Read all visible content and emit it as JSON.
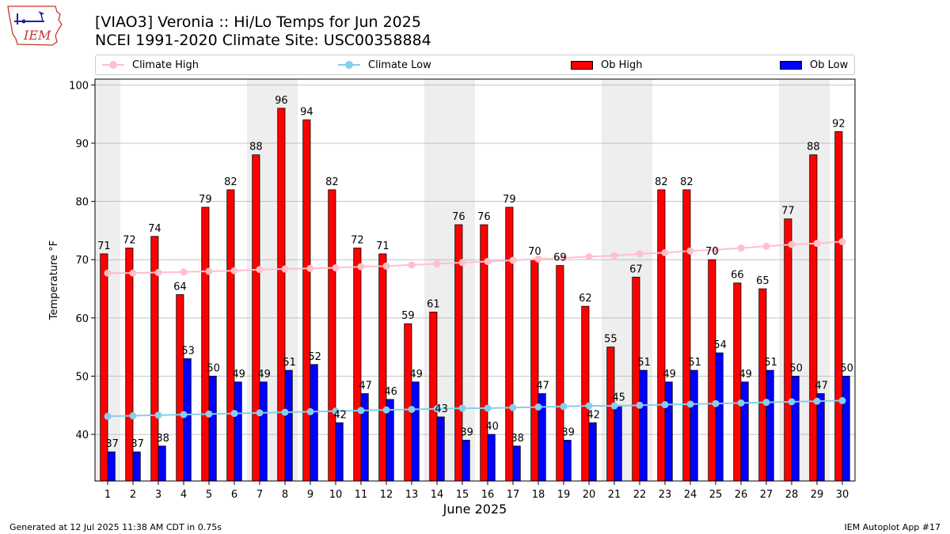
{
  "header": {
    "title_line1": "[VIAO3] Veronia :: Hi/Lo Temps for Jun 2025",
    "title_line2": "NCEI 1991-2020 Climate Site: USC00358884",
    "logo_text": "IEM"
  },
  "footer": {
    "left": "Generated at 12 Jul 2025 11:38 AM CDT in 0.75s",
    "right": "IEM Autoplot App #17"
  },
  "colors": {
    "ob_high": "#ff0000",
    "ob_low": "#0000ff",
    "climate_high": "#ffc0cb",
    "climate_low": "#87ceeb",
    "weekend_shade": "#eeeeee",
    "grid": "#b0b0b0"
  },
  "chart_data": {
    "type": "bar",
    "xlabel": "June 2025",
    "ylabel": "Temperature °F",
    "ylim": [
      32,
      101
    ],
    "yticks": [
      40,
      50,
      60,
      70,
      80,
      90,
      100
    ],
    "grid": "horizontal",
    "legend_position": "top",
    "categories": [
      "1",
      "2",
      "3",
      "4",
      "5",
      "6",
      "7",
      "8",
      "9",
      "10",
      "11",
      "12",
      "13",
      "14",
      "15",
      "16",
      "17",
      "18",
      "19",
      "20",
      "21",
      "22",
      "23",
      "24",
      "25",
      "26",
      "27",
      "28",
      "29",
      "30"
    ],
    "shaded_days": [
      1,
      7,
      8,
      14,
      15,
      21,
      22,
      28,
      29
    ],
    "series": [
      {
        "name": "Climate High",
        "kind": "line",
        "values": [
          67.7,
          67.7,
          67.8,
          67.9,
          68.0,
          68.1,
          68.3,
          68.4,
          68.5,
          68.6,
          68.8,
          68.9,
          69.1,
          69.3,
          69.5,
          69.7,
          69.9,
          70.1,
          70.3,
          70.5,
          70.7,
          71.0,
          71.2,
          71.5,
          71.7,
          72.0,
          72.3,
          72.6,
          72.8,
          73.1
        ]
      },
      {
        "name": "Climate Low",
        "kind": "line",
        "values": [
          43.1,
          43.2,
          43.3,
          43.4,
          43.5,
          43.6,
          43.7,
          43.8,
          43.9,
          44.0,
          44.1,
          44.2,
          44.3,
          44.4,
          44.5,
          44.5,
          44.6,
          44.7,
          44.8,
          44.9,
          44.9,
          45.0,
          45.1,
          45.2,
          45.3,
          45.4,
          45.5,
          45.6,
          45.7,
          45.8
        ]
      },
      {
        "name": "Ob High",
        "kind": "bar",
        "values": [
          71,
          72,
          74,
          64,
          79,
          82,
          88,
          96,
          94,
          82,
          72,
          71,
          59,
          61,
          76,
          76,
          79,
          70,
          69,
          62,
          55,
          67,
          82,
          82,
          70,
          66,
          65,
          77,
          88,
          92
        ]
      },
      {
        "name": "Ob Low",
        "kind": "bar",
        "values": [
          37,
          37,
          38,
          53,
          50,
          49,
          49,
          51,
          52,
          42,
          47,
          46,
          49,
          43,
          39,
          40,
          38,
          47,
          39,
          42,
          45,
          51,
          49,
          51,
          54,
          49,
          51,
          50,
          47,
          50
        ]
      }
    ]
  }
}
